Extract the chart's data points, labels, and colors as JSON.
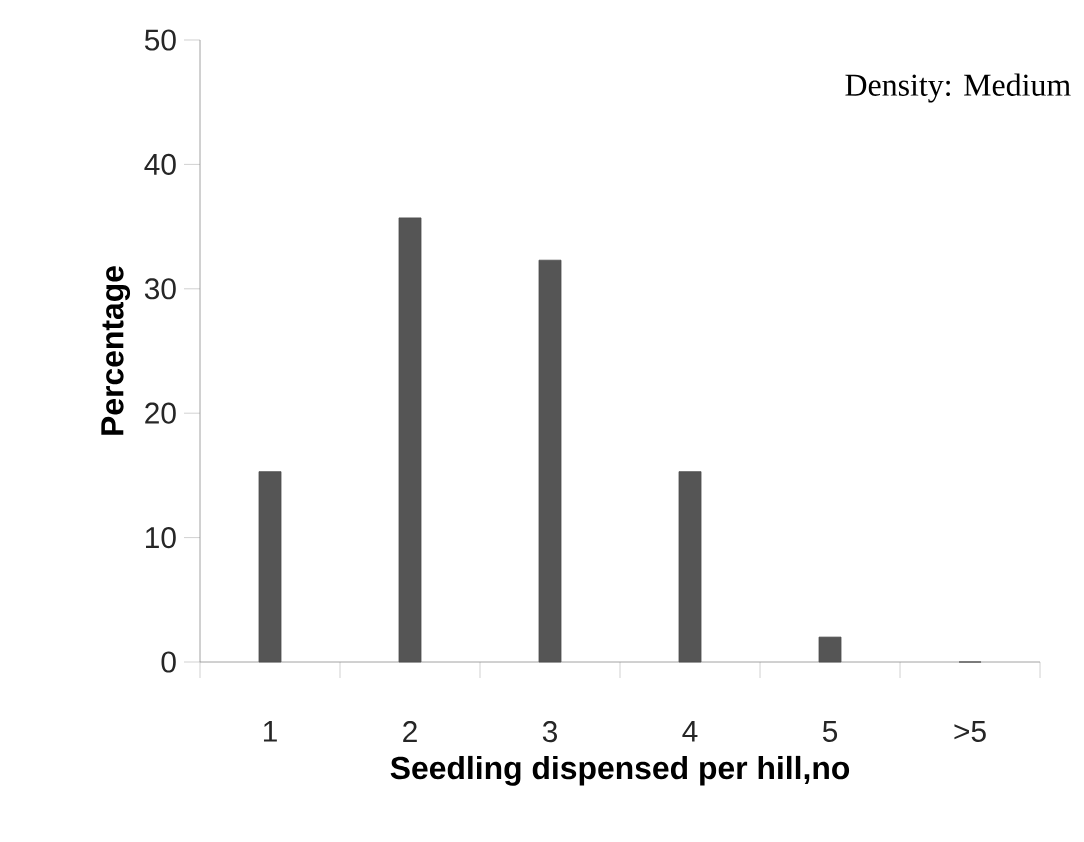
{
  "chart_data": {
    "type": "bar",
    "categories": [
      "1",
      "2",
      "3",
      "4",
      "5",
      ">5"
    ],
    "values": [
      15.3,
      35.7,
      32.3,
      15.3,
      2.0,
      0
    ],
    "color": "#555555",
    "xlabel": "Seedling dispensed per hill,no",
    "ylabel": "Percentage",
    "ylim": [
      0,
      50
    ],
    "yticks": [
      0,
      10,
      20,
      30,
      40,
      50
    ],
    "annotations": [
      "Density: Medium"
    ]
  }
}
